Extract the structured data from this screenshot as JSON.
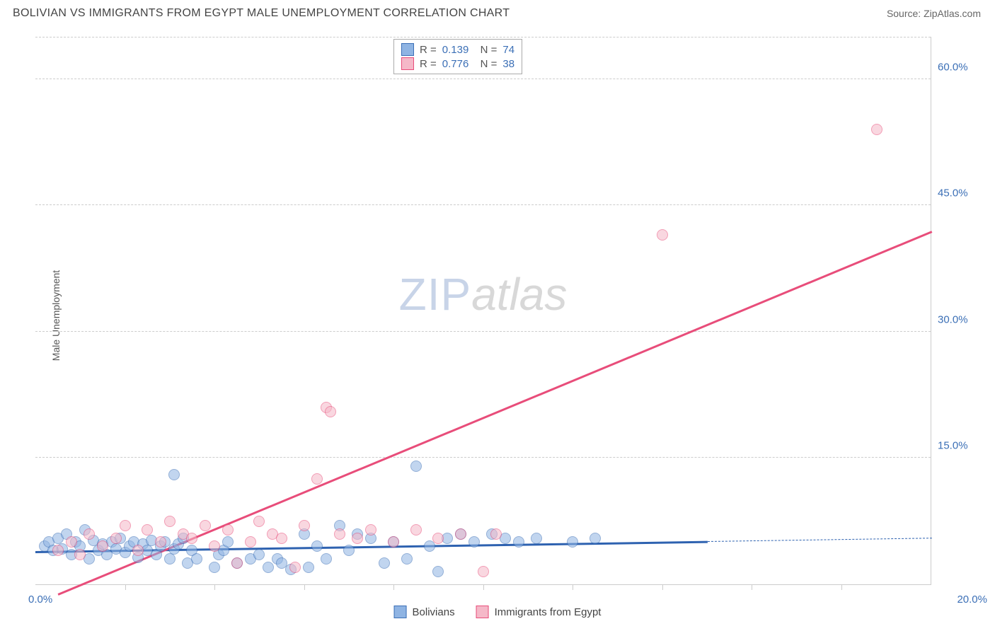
{
  "header": {
    "title": "BOLIVIAN VS IMMIGRANTS FROM EGYPT MALE UNEMPLOYMENT CORRELATION CHART",
    "source_label": "Source:",
    "source_name": "ZipAtlas.com"
  },
  "chart": {
    "type": "scatter",
    "ylabel": "Male Unemployment",
    "xlim": [
      0,
      20
    ],
    "ylim": [
      0,
      65
    ],
    "xtick_step_pct": 10,
    "yticks": [
      15.0,
      30.0,
      45.0,
      60.0
    ],
    "ytick_format": "%.1f%%",
    "xtick_origin": "0.0%",
    "xtick_end": "20.0%",
    "background_color": "#ffffff",
    "grid_color": "#cccccc",
    "tick_color": "#3b6fb6",
    "axis_label_color": "#555555",
    "point_radius": 8,
    "point_opacity": 0.55,
    "watermark": {
      "part1": "ZIP",
      "part2": "atlas"
    },
    "series": [
      {
        "name": "Bolivians",
        "fill_color": "#8fb4e3",
        "stroke_color": "#3b6fb6",
        "reg_color": "#2e62b0",
        "R": "0.139",
        "N": "74",
        "regression": {
          "x1": 0,
          "y1": 4.0,
          "x2": 15,
          "y2": 5.2,
          "dash_to_x": 20
        },
        "points": [
          [
            0.2,
            4.5
          ],
          [
            0.3,
            5.0
          ],
          [
            0.4,
            4.0
          ],
          [
            0.5,
            5.5
          ],
          [
            0.6,
            4.2
          ],
          [
            0.7,
            6.0
          ],
          [
            0.8,
            3.5
          ],
          [
            0.9,
            5.0
          ],
          [
            1.0,
            4.5
          ],
          [
            1.1,
            6.5
          ],
          [
            1.2,
            3.0
          ],
          [
            1.3,
            5.2
          ],
          [
            1.4,
            4.0
          ],
          [
            1.5,
            4.8
          ],
          [
            1.6,
            3.5
          ],
          [
            1.7,
            5.0
          ],
          [
            1.8,
            4.2
          ],
          [
            1.9,
            5.5
          ],
          [
            2.0,
            3.8
          ],
          [
            2.1,
            4.5
          ],
          [
            2.2,
            5.0
          ],
          [
            2.3,
            3.2
          ],
          [
            2.4,
            4.8
          ],
          [
            2.5,
            4.0
          ],
          [
            2.6,
            5.2
          ],
          [
            2.7,
            3.5
          ],
          [
            2.8,
            4.5
          ],
          [
            2.9,
            5.0
          ],
          [
            3.0,
            3.0
          ],
          [
            3.1,
            4.2
          ],
          [
            3.2,
            4.8
          ],
          [
            3.3,
            5.5
          ],
          [
            3.4,
            2.5
          ],
          [
            3.5,
            4.0
          ],
          [
            3.6,
            3.0
          ],
          [
            3.1,
            13.0
          ],
          [
            4.0,
            2.0
          ],
          [
            4.1,
            3.5
          ],
          [
            4.2,
            4.0
          ],
          [
            4.3,
            5.0
          ],
          [
            4.5,
            2.5
          ],
          [
            4.8,
            3.0
          ],
          [
            5.0,
            3.5
          ],
          [
            5.2,
            2.0
          ],
          [
            5.4,
            3.0
          ],
          [
            5.5,
            2.5
          ],
          [
            5.7,
            1.8
          ],
          [
            6.0,
            6.0
          ],
          [
            6.1,
            2.0
          ],
          [
            6.3,
            4.5
          ],
          [
            6.5,
            3.0
          ],
          [
            6.8,
            7.0
          ],
          [
            7.0,
            4.0
          ],
          [
            7.2,
            6.0
          ],
          [
            7.5,
            5.5
          ],
          [
            7.8,
            2.5
          ],
          [
            8.0,
            5.0
          ],
          [
            8.3,
            3.0
          ],
          [
            8.5,
            14.0
          ],
          [
            8.8,
            4.5
          ],
          [
            9.0,
            1.5
          ],
          [
            9.2,
            5.5
          ],
          [
            9.5,
            6.0
          ],
          [
            9.8,
            5.0
          ],
          [
            10.2,
            6.0
          ],
          [
            10.5,
            5.5
          ],
          [
            10.8,
            5.0
          ],
          [
            11.2,
            5.5
          ],
          [
            12.0,
            5.0
          ],
          [
            12.5,
            5.5
          ]
        ]
      },
      {
        "name": "Immigrants from Egypt",
        "fill_color": "#f5b8c8",
        "stroke_color": "#e84d7a",
        "reg_color": "#e84d7a",
        "R": "0.776",
        "N": "38",
        "regression": {
          "x1": 0.5,
          "y1": -1.0,
          "x2": 20,
          "y2": 42.0
        },
        "points": [
          [
            0.5,
            4.0
          ],
          [
            0.8,
            5.0
          ],
          [
            1.0,
            3.5
          ],
          [
            1.2,
            6.0
          ],
          [
            1.5,
            4.5
          ],
          [
            1.8,
            5.5
          ],
          [
            2.0,
            7.0
          ],
          [
            2.3,
            4.0
          ],
          [
            2.5,
            6.5
          ],
          [
            2.8,
            5.0
          ],
          [
            3.0,
            7.5
          ],
          [
            3.3,
            6.0
          ],
          [
            3.5,
            5.5
          ],
          [
            3.8,
            7.0
          ],
          [
            4.0,
            4.5
          ],
          [
            4.3,
            6.5
          ],
          [
            4.5,
            2.5
          ],
          [
            4.8,
            5.0
          ],
          [
            5.0,
            7.5
          ],
          [
            5.3,
            6.0
          ],
          [
            5.5,
            5.5
          ],
          [
            5.8,
            2.0
          ],
          [
            6.0,
            7.0
          ],
          [
            6.3,
            12.5
          ],
          [
            6.5,
            21.0
          ],
          [
            6.6,
            20.5
          ],
          [
            6.8,
            6.0
          ],
          [
            7.2,
            5.5
          ],
          [
            7.5,
            6.5
          ],
          [
            8.0,
            5.0
          ],
          [
            8.5,
            6.5
          ],
          [
            9.0,
            5.5
          ],
          [
            9.5,
            6.0
          ],
          [
            10.0,
            1.5
          ],
          [
            10.3,
            6.0
          ],
          [
            14.0,
            41.5
          ],
          [
            18.8,
            54.0
          ]
        ]
      }
    ],
    "bottom_legend": [
      {
        "label": "Bolivians",
        "fill": "#8fb4e3",
        "stroke": "#3b6fb6"
      },
      {
        "label": "Immigrants from Egypt",
        "fill": "#f5b8c8",
        "stroke": "#e84d7a"
      }
    ]
  }
}
